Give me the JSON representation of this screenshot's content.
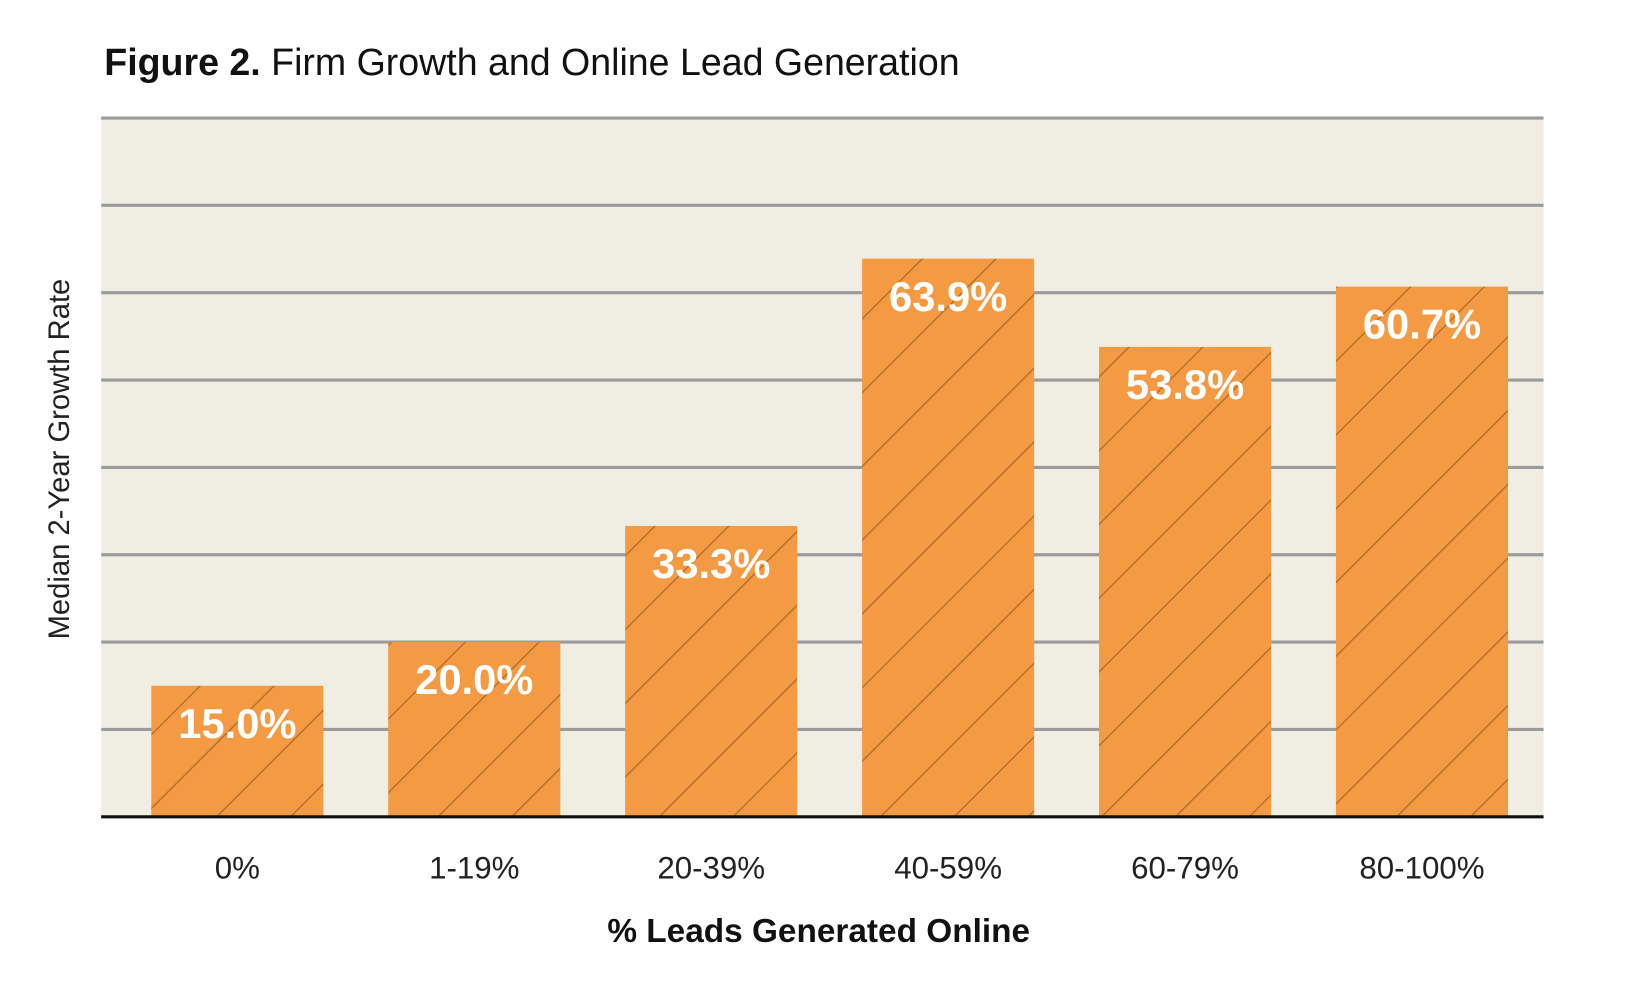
{
  "chart_data": {
    "type": "bar",
    "title_prefix": "Figure 2.",
    "title": "Firm Growth and Online Lead Generation",
    "xlabel": "% Leads Generated Online",
    "ylabel": "Median 2-Year Growth Rate",
    "categories": [
      "0%",
      "1-19%",
      "20-39%",
      "40-59%",
      "60-79%",
      "80-100%"
    ],
    "values": [
      15.0,
      20.0,
      33.3,
      63.9,
      53.8,
      60.7
    ],
    "value_labels": [
      "15.0%",
      "20.0%",
      "33.3%",
      "63.9%",
      "53.8%",
      "60.7%"
    ],
    "ylim": [
      0,
      80
    ],
    "grid_step": 10,
    "grid": true,
    "colors": {
      "bar": "#f39a42",
      "hatch": "#b06a28",
      "plot_bg": "#f0eee3",
      "grid": "#9b9b9b"
    }
  }
}
